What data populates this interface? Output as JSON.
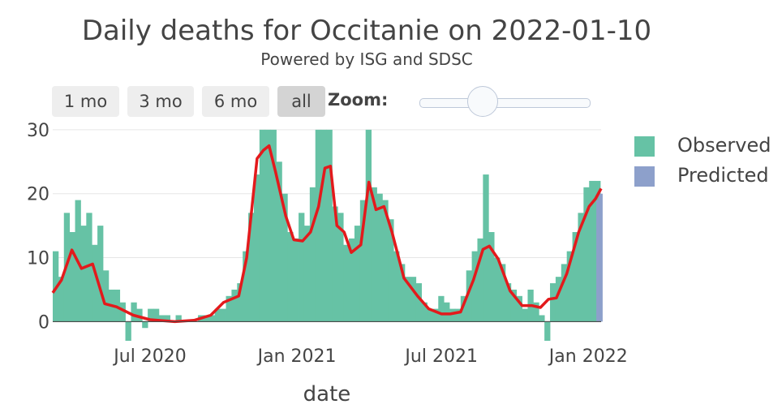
{
  "chart_data": {
    "type": "bar",
    "title": "Daily deaths for Occitanie on 2022-01-10",
    "subtitle": "Powered by ISG and SDSC",
    "xlabel": "date",
    "ylabel": "",
    "x_range": [
      "2020-03-01",
      "2022-01-17"
    ],
    "ylim": [
      -3,
      31
    ],
    "y_ticks": [
      0,
      10,
      20,
      30
    ],
    "x_ticks": [
      {
        "date": "2020-07-01",
        "label": "Jul 2020"
      },
      {
        "date": "2021-01-01",
        "label": "Jan 2021"
      },
      {
        "date": "2021-07-01",
        "label": "Jul 2021"
      },
      {
        "date": "2022-01-01",
        "label": "Jan 2022"
      }
    ],
    "grid": true,
    "legend_position": "right",
    "series": [
      {
        "name": "Observed",
        "kind": "bar",
        "color": "#66c2a5",
        "points": [
          [
            "2020-03-01",
            11
          ],
          [
            "2020-03-08",
            7
          ],
          [
            "2020-03-15",
            17
          ],
          [
            "2020-03-22",
            14
          ],
          [
            "2020-03-29",
            19
          ],
          [
            "2020-04-05",
            15
          ],
          [
            "2020-04-12",
            17
          ],
          [
            "2020-04-19",
            12
          ],
          [
            "2020-04-26",
            15
          ],
          [
            "2020-05-03",
            8
          ],
          [
            "2020-05-10",
            5
          ],
          [
            "2020-05-17",
            5
          ],
          [
            "2020-05-24",
            3
          ],
          [
            "2020-05-31",
            -3
          ],
          [
            "2020-06-07",
            3
          ],
          [
            "2020-06-14",
            2
          ],
          [
            "2020-06-21",
            -1
          ],
          [
            "2020-06-28",
            2
          ],
          [
            "2020-07-05",
            2
          ],
          [
            "2020-07-12",
            1
          ],
          [
            "2020-07-19",
            1
          ],
          [
            "2020-07-26",
            0
          ],
          [
            "2020-08-02",
            1
          ],
          [
            "2020-08-09",
            0
          ],
          [
            "2020-08-16",
            0
          ],
          [
            "2020-08-23",
            0
          ],
          [
            "2020-08-30",
            1
          ],
          [
            "2020-09-06",
            1
          ],
          [
            "2020-09-13",
            1
          ],
          [
            "2020-09-20",
            2
          ],
          [
            "2020-09-27",
            2
          ],
          [
            "2020-10-04",
            4
          ],
          [
            "2020-10-11",
            5
          ],
          [
            "2020-10-18",
            6
          ],
          [
            "2020-10-25",
            11
          ],
          [
            "2020-11-01",
            17
          ],
          [
            "2020-11-08",
            23
          ],
          [
            "2020-11-15",
            30
          ],
          [
            "2020-11-22",
            30
          ],
          [
            "2020-11-29",
            30
          ],
          [
            "2020-12-06",
            25
          ],
          [
            "2020-12-13",
            20
          ],
          [
            "2020-12-20",
            14
          ],
          [
            "2020-12-27",
            13
          ],
          [
            "2021-01-03",
            17
          ],
          [
            "2021-01-10",
            15
          ],
          [
            "2021-01-17",
            21
          ],
          [
            "2021-01-24",
            30
          ],
          [
            "2021-01-31",
            30
          ],
          [
            "2021-02-07",
            30
          ],
          [
            "2021-02-14",
            18
          ],
          [
            "2021-02-21",
            17
          ],
          [
            "2021-02-28",
            12
          ],
          [
            "2021-03-07",
            13
          ],
          [
            "2021-03-14",
            15
          ],
          [
            "2021-03-21",
            19
          ],
          [
            "2021-03-28",
            30
          ],
          [
            "2021-04-04",
            21
          ],
          [
            "2021-04-11",
            20
          ],
          [
            "2021-04-18",
            19
          ],
          [
            "2021-04-25",
            16
          ],
          [
            "2021-05-02",
            11
          ],
          [
            "2021-05-09",
            9
          ],
          [
            "2021-05-16",
            7
          ],
          [
            "2021-05-23",
            7
          ],
          [
            "2021-05-30",
            6
          ],
          [
            "2021-06-06",
            3
          ],
          [
            "2021-06-13",
            2
          ],
          [
            "2021-06-20",
            2
          ],
          [
            "2021-06-27",
            4
          ],
          [
            "2021-07-04",
            3
          ],
          [
            "2021-07-11",
            2
          ],
          [
            "2021-07-18",
            2
          ],
          [
            "2021-07-25",
            4
          ],
          [
            "2021-08-01",
            8
          ],
          [
            "2021-08-08",
            11
          ],
          [
            "2021-08-15",
            13
          ],
          [
            "2021-08-22",
            23
          ],
          [
            "2021-08-29",
            14
          ],
          [
            "2021-09-05",
            10
          ],
          [
            "2021-09-12",
            9
          ],
          [
            "2021-09-19",
            6
          ],
          [
            "2021-09-26",
            5
          ],
          [
            "2021-10-03",
            4
          ],
          [
            "2021-10-10",
            2
          ],
          [
            "2021-10-17",
            5
          ],
          [
            "2021-10-24",
            3
          ],
          [
            "2021-10-31",
            1
          ],
          [
            "2021-11-07",
            -3
          ],
          [
            "2021-11-14",
            6
          ],
          [
            "2021-11-21",
            7
          ],
          [
            "2021-11-28",
            9
          ],
          [
            "2021-12-05",
            11
          ],
          [
            "2021-12-12",
            14
          ],
          [
            "2021-12-19",
            17
          ],
          [
            "2021-12-26",
            21
          ],
          [
            "2022-01-02",
            22
          ],
          [
            "2022-01-09",
            22
          ]
        ]
      },
      {
        "name": "Predicted",
        "kind": "bar",
        "color": "#8da0cb",
        "points": [
          [
            "2022-01-11",
            19
          ],
          [
            "2022-01-14",
            20
          ],
          [
            "2022-01-16",
            20
          ]
        ]
      },
      {
        "name": "",
        "kind": "line",
        "color": "#e31a1c",
        "points": [
          [
            "2020-03-01",
            4.5
          ],
          [
            "2020-03-12",
            6.5
          ],
          [
            "2020-03-25",
            11.2
          ],
          [
            "2020-04-06",
            8.3
          ],
          [
            "2020-04-20",
            9.0
          ],
          [
            "2020-05-05",
            2.8
          ],
          [
            "2020-05-20",
            2.3
          ],
          [
            "2020-06-10",
            1.0
          ],
          [
            "2020-07-01",
            0.3
          ],
          [
            "2020-08-01",
            0.0
          ],
          [
            "2020-08-25",
            0.2
          ],
          [
            "2020-09-15",
            1.0
          ],
          [
            "2020-10-01",
            3.0
          ],
          [
            "2020-10-20",
            4.0
          ],
          [
            "2020-10-30",
            10.0
          ],
          [
            "2020-11-12",
            25.5
          ],
          [
            "2020-11-20",
            26.8
          ],
          [
            "2020-11-27",
            27.5
          ],
          [
            "2020-12-05",
            23.5
          ],
          [
            "2020-12-18",
            16.5
          ],
          [
            "2020-12-28",
            12.8
          ],
          [
            "2021-01-08",
            12.6
          ],
          [
            "2021-01-18",
            14.0
          ],
          [
            "2021-01-28",
            18.0
          ],
          [
            "2021-02-05",
            24.0
          ],
          [
            "2021-02-12",
            24.3
          ],
          [
            "2021-02-20",
            15.0
          ],
          [
            "2021-03-01",
            14.0
          ],
          [
            "2021-03-10",
            10.8
          ],
          [
            "2021-03-22",
            12.0
          ],
          [
            "2021-04-01",
            21.8
          ],
          [
            "2021-04-10",
            17.5
          ],
          [
            "2021-04-20",
            18.0
          ],
          [
            "2021-04-30",
            14.0
          ],
          [
            "2021-05-15",
            6.8
          ],
          [
            "2021-06-01",
            4.0
          ],
          [
            "2021-06-15",
            2.0
          ],
          [
            "2021-07-01",
            1.2
          ],
          [
            "2021-07-12",
            1.2
          ],
          [
            "2021-07-25",
            1.5
          ],
          [
            "2021-08-10",
            6.5
          ],
          [
            "2021-08-22",
            11.3
          ],
          [
            "2021-08-30",
            11.8
          ],
          [
            "2021-09-10",
            9.8
          ],
          [
            "2021-09-25",
            4.8
          ],
          [
            "2021-10-10",
            2.5
          ],
          [
            "2021-10-22",
            2.5
          ],
          [
            "2021-11-02",
            2.2
          ],
          [
            "2021-11-12",
            3.5
          ],
          [
            "2021-11-22",
            3.7
          ],
          [
            "2021-12-05",
            7.5
          ],
          [
            "2021-12-20",
            14.0
          ],
          [
            "2022-01-02",
            18.0
          ],
          [
            "2022-01-10",
            19.2
          ],
          [
            "2022-01-17",
            20.8
          ]
        ]
      }
    ]
  },
  "controls": {
    "range_buttons": [
      {
        "label": "1 mo",
        "active": false
      },
      {
        "label": "3 mo",
        "active": false
      },
      {
        "label": "6 mo",
        "active": false
      },
      {
        "label": "all",
        "active": true
      }
    ],
    "zoom_label": "Zoom:"
  },
  "legend": {
    "items": [
      {
        "label": "Observed",
        "color": "#66c2a5"
      },
      {
        "label": "Predicted",
        "color": "#8da0cb"
      }
    ]
  }
}
